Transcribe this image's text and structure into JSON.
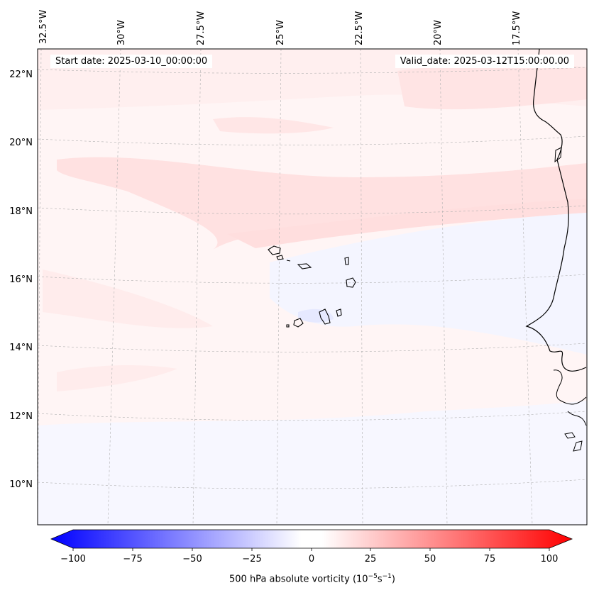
{
  "map": {
    "start_date": "Start date: 2025-03-10_00:00:00",
    "valid_date": "Valid_date: 2025-03-12T15:00:00.00",
    "longitude_labels": [
      "32.5°W",
      "30°W",
      "27.5°W",
      "25°W",
      "22.5°W",
      "20°W",
      "17.5°W"
    ],
    "latitude_labels": [
      "22°N",
      "20°N",
      "18°N",
      "16°N",
      "14°N",
      "12°N",
      "10°N"
    ],
    "field_colors": {
      "background": "#fff5f5",
      "positive_band": "#ffe1e1",
      "weak_positive": "#ffecec",
      "negative": "#f3f5ff"
    }
  },
  "colorbar": {
    "ticks": [
      "−100",
      "−75",
      "−50",
      "−25",
      "0",
      "25",
      "50",
      "75",
      "100"
    ],
    "label_prefix": "500 hPa absolute vorticity (10",
    "label_exp1": "−5",
    "label_mid": "s",
    "label_exp2": "−1",
    "label_suffix": ")",
    "min_color": "#0000ff",
    "max_color": "#ff0000"
  }
}
